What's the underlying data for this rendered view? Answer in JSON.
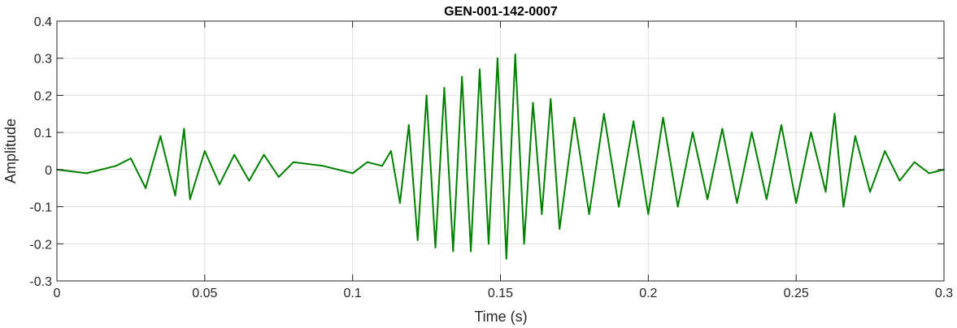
{
  "chart_data": {
    "type": "line",
    "title": "GEN-001-142-0007",
    "xlabel": "Time (s)",
    "ylabel": "Amplitude",
    "xlim": [
      0,
      0.3
    ],
    "ylim": [
      -0.3,
      0.4
    ],
    "grid": true,
    "x_ticks": [
      0,
      0.05,
      0.1,
      0.15,
      0.2,
      0.25,
      0.3
    ],
    "x_tick_labels": [
      "0",
      "0.05",
      "0.1",
      "0.15",
      "0.2",
      "0.25",
      "0.3"
    ],
    "y_ticks": [
      -0.3,
      -0.2,
      -0.1,
      0,
      0.1,
      0.2,
      0.3,
      0.4
    ],
    "y_tick_labels": [
      "-0.3",
      "-0.2",
      "-0.1",
      "0",
      "0.1",
      "0.2",
      "0.3",
      "0.4"
    ],
    "series": [
      {
        "color": "#008000",
        "x": [
          0,
          0.01,
          0.02,
          0.025,
          0.03,
          0.035,
          0.04,
          0.043,
          0.045,
          0.05,
          0.055,
          0.06,
          0.065,
          0.07,
          0.075,
          0.08,
          0.09,
          0.1,
          0.105,
          0.11,
          0.113,
          0.116,
          0.119,
          0.122,
          0.125,
          0.128,
          0.131,
          0.134,
          0.137,
          0.14,
          0.143,
          0.146,
          0.149,
          0.152,
          0.155,
          0.158,
          0.161,
          0.164,
          0.167,
          0.17,
          0.175,
          0.18,
          0.185,
          0.19,
          0.195,
          0.2,
          0.205,
          0.21,
          0.215,
          0.22,
          0.225,
          0.23,
          0.235,
          0.24,
          0.245,
          0.25,
          0.255,
          0.26,
          0.263,
          0.266,
          0.27,
          0.275,
          0.28,
          0.285,
          0.29,
          0.295,
          0.3
        ],
        "y": [
          0,
          -0.01,
          0.01,
          0.03,
          -0.05,
          0.09,
          -0.07,
          0.11,
          -0.08,
          0.05,
          -0.04,
          0.04,
          -0.03,
          0.04,
          -0.02,
          0.02,
          0.01,
          -0.01,
          0.02,
          0.01,
          0.05,
          -0.09,
          0.12,
          -0.19,
          0.2,
          -0.21,
          0.22,
          -0.22,
          0.25,
          -0.22,
          0.27,
          -0.2,
          0.3,
          -0.24,
          0.31,
          -0.2,
          0.18,
          -0.12,
          0.19,
          -0.16,
          0.14,
          -0.12,
          0.15,
          -0.1,
          0.13,
          -0.12,
          0.14,
          -0.1,
          0.1,
          -0.08,
          0.11,
          -0.09,
          0.1,
          -0.08,
          0.12,
          -0.09,
          0.1,
          -0.06,
          0.15,
          -0.1,
          0.09,
          -0.06,
          0.05,
          -0.03,
          0.02,
          -0.01,
          0
        ]
      }
    ]
  }
}
